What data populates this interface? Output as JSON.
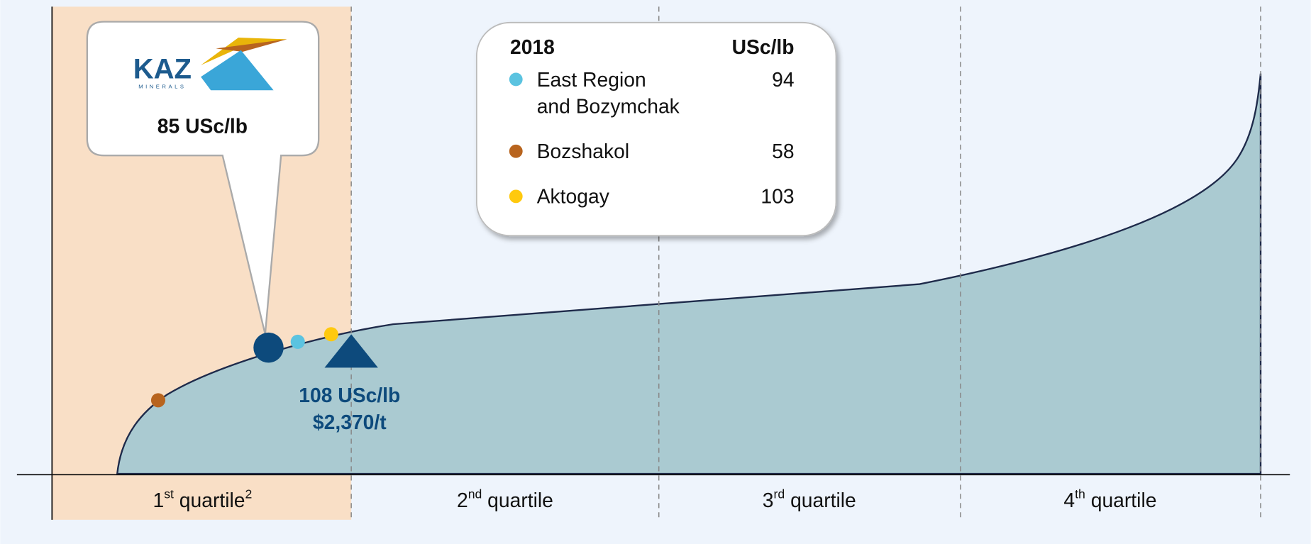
{
  "chart_data": {
    "type": "cost_curve",
    "legend": {
      "year": "2018",
      "unit": "USc/lb",
      "series": [
        {
          "name": [
            "East Region",
            "and Bozymchak"
          ],
          "color": "#5bc3e0",
          "value": 94
        },
        {
          "name": [
            "Bozshakol"
          ],
          "color": "#b8641e",
          "value": 58
        },
        {
          "name": [
            "Aktogay"
          ],
          "color": "#ffc90e",
          "value": 103
        }
      ]
    },
    "company": {
      "logo_text": "KAZ",
      "logo_subtext": "MINERALS",
      "value": 85,
      "value_label": "85 USc/lb",
      "color": "#0d4a7c"
    },
    "quartile_marker": {
      "labels": [
        "108 USc/lb",
        "$2,370/t"
      ],
      "color": "#0d4a7c"
    },
    "quartiles": [
      {
        "ordinal": "1",
        "suffix": "st",
        "text": " quartile",
        "note": "2"
      },
      {
        "ordinal": "2",
        "suffix": "nd",
        "text": " quartile"
      },
      {
        "ordinal": "3",
        "suffix": "rd",
        "text": " quartile"
      },
      {
        "ordinal": "4",
        "suffix": "th",
        "text": " quartile"
      }
    ],
    "area_color": "#aacad1"
  }
}
